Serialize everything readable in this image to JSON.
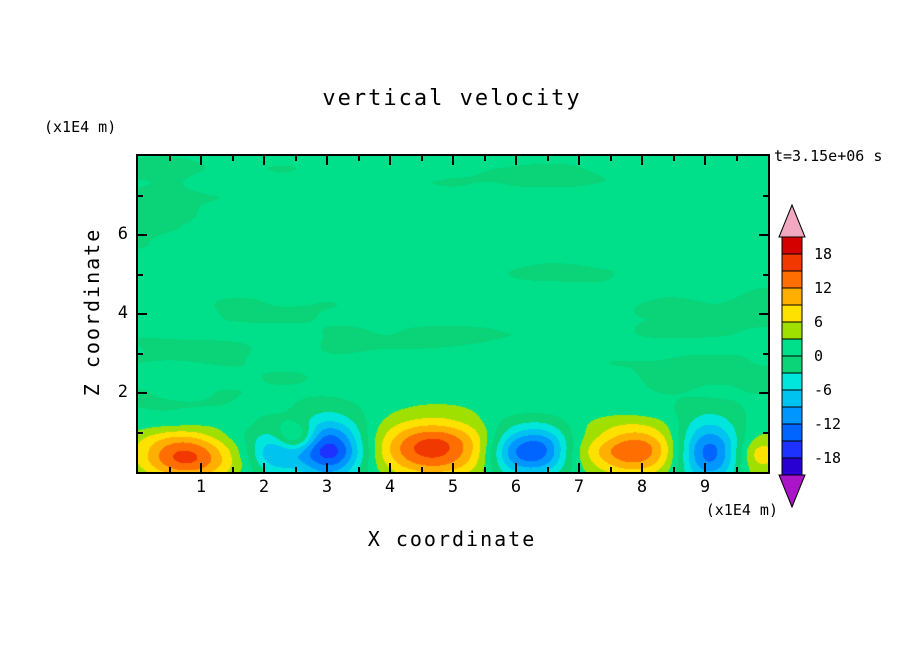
{
  "figure": {
    "background": "#ffffff"
  },
  "chart_data": {
    "type": "contour",
    "title": "vertical velocity",
    "xlabel": "X coordinate",
    "ylabel": "Z coordinate",
    "x_unit_label": "(x1E4 m)",
    "z_unit_label": "(x1E4 m)",
    "time_label": "t=3.15e+06 s",
    "x_range": [
      0,
      10
    ],
    "z_range": [
      0,
      8
    ],
    "x_major_ticks": [
      1,
      2,
      3,
      4,
      5,
      6,
      7,
      8,
      9
    ],
    "x_minor_ticks": [
      0.5,
      1.5,
      2.5,
      3.5,
      4.5,
      5.5,
      6.5,
      7.5,
      8.5,
      9.5
    ],
    "z_major_ticks": [
      2,
      4,
      6
    ],
    "z_minor_ticks": [
      1,
      3,
      5,
      7
    ],
    "contour_interval": 3,
    "levels": [
      -21,
      -18,
      -15,
      -12,
      -9,
      -6,
      -3,
      0,
      3,
      6,
      9,
      12,
      15,
      18,
      21
    ],
    "segment_colors": [
      "#2800D2",
      "#1E32FF",
      "#0064FF",
      "#0096FF",
      "#00C3F0",
      "#00E6DC",
      "#0AD378",
      "#00E08A",
      "#A0E000",
      "#FFE100",
      "#FFAF00",
      "#FF6E00",
      "#F03800",
      "#D40000"
    ],
    "under_color": "#AA14C8",
    "over_color": "#F2A8C0",
    "colorbar_tick_labels": [
      18,
      12,
      6,
      0,
      -6,
      -12,
      -18
    ],
    "field_model": {
      "noise": {
        "bias": 0.6,
        "amp1": 1.35,
        "amp2": 0.65,
        "sx": 0.45,
        "sz": 1.2
      },
      "blobs": [
        {
          "x": 0.75,
          "z": 0.35,
          "sx": 0.55,
          "sz": 0.45,
          "amp": 16
        },
        {
          "x": 2.15,
          "z": 0.45,
          "sx": 0.28,
          "sz": 0.4,
          "amp": -8
        },
        {
          "x": 2.5,
          "z": 0.9,
          "sx": 0.22,
          "sz": 0.25,
          "amp": 9.5
        },
        {
          "x": 3.05,
          "z": 0.55,
          "sx": 0.4,
          "sz": 0.55,
          "amp": -17
        },
        {
          "x": 4.65,
          "z": 0.6,
          "sx": 0.65,
          "sz": 0.5,
          "amp": 15
        },
        {
          "x": 5.95,
          "z": 0.5,
          "sx": 0.3,
          "sz": 0.45,
          "amp": -11
        },
        {
          "x": 6.45,
          "z": 0.55,
          "sx": 0.3,
          "sz": 0.45,
          "amp": -12
        },
        {
          "x": 7.9,
          "z": 0.55,
          "sx": 0.55,
          "sz": 0.45,
          "amp": 13.5
        },
        {
          "x": 9.05,
          "z": 0.5,
          "sx": 0.38,
          "sz": 0.55,
          "amp": -16
        },
        {
          "x": 9.85,
          "z": 0.4,
          "sx": 0.3,
          "sz": 0.45,
          "amp": 7
        }
      ]
    }
  }
}
